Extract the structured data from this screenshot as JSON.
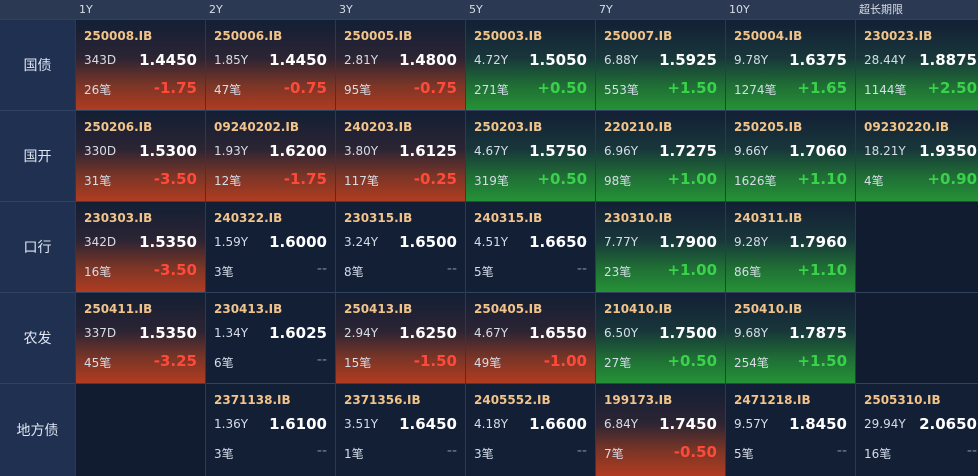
{
  "columns": [
    "1Y",
    "2Y",
    "3Y",
    "5Y",
    "7Y",
    "10Y",
    "超长期限"
  ],
  "rows": [
    {
      "name": "国债",
      "cells": [
        {
          "code": "250008.IB",
          "tenor": "343D",
          "price": "1.4450",
          "count": "26笔",
          "change": "-1.75",
          "trend": "red"
        },
        {
          "code": "250006.IB",
          "tenor": "1.85Y",
          "price": "1.4450",
          "count": "47笔",
          "change": "-0.75",
          "trend": "red"
        },
        {
          "code": "250005.IB",
          "tenor": "2.81Y",
          "price": "1.4800",
          "count": "95笔",
          "change": "-0.75",
          "trend": "red"
        },
        {
          "code": "250003.IB",
          "tenor": "4.72Y",
          "price": "1.5050",
          "count": "271笔",
          "change": "+0.50",
          "trend": "green"
        },
        {
          "code": "250007.IB",
          "tenor": "6.88Y",
          "price": "1.5925",
          "count": "553笔",
          "change": "+1.50",
          "trend": "green"
        },
        {
          "code": "250004.IB",
          "tenor": "9.78Y",
          "price": "1.6375",
          "count": "1274笔",
          "change": "+1.65",
          "trend": "green"
        },
        {
          "code": "230023.IB",
          "tenor": "28.44Y",
          "price": "1.8875",
          "count": "1144笔",
          "change": "+2.50",
          "trend": "green"
        }
      ]
    },
    {
      "name": "国开",
      "cells": [
        {
          "code": "250206.IB",
          "tenor": "330D",
          "price": "1.5300",
          "count": "31笔",
          "change": "-3.50",
          "trend": "red"
        },
        {
          "code": "09240202.IB",
          "tenor": "1.93Y",
          "price": "1.6200",
          "count": "12笔",
          "change": "-1.75",
          "trend": "red"
        },
        {
          "code": "240203.IB",
          "tenor": "3.80Y",
          "price": "1.6125",
          "count": "117笔",
          "change": "-0.25",
          "trend": "red"
        },
        {
          "code": "250203.IB",
          "tenor": "4.67Y",
          "price": "1.5750",
          "count": "319笔",
          "change": "+0.50",
          "trend": "green"
        },
        {
          "code": "220210.IB",
          "tenor": "6.96Y",
          "price": "1.7275",
          "count": "98笔",
          "change": "+1.00",
          "trend": "green"
        },
        {
          "code": "250205.IB",
          "tenor": "9.66Y",
          "price": "1.7060",
          "count": "1626笔",
          "change": "+1.10",
          "trend": "green"
        },
        {
          "code": "09230220.IB",
          "tenor": "18.21Y",
          "price": "1.9350",
          "count": "4笔",
          "change": "+0.90",
          "trend": "green"
        }
      ]
    },
    {
      "name": "口行",
      "cells": [
        {
          "code": "230303.IB",
          "tenor": "342D",
          "price": "1.5350",
          "count": "16笔",
          "change": "-3.50",
          "trend": "red"
        },
        {
          "code": "240322.IB",
          "tenor": "1.59Y",
          "price": "1.6000",
          "count": "3笔",
          "change": "--",
          "trend": "none"
        },
        {
          "code": "230315.IB",
          "tenor": "3.24Y",
          "price": "1.6500",
          "count": "8笔",
          "change": "--",
          "trend": "none"
        },
        {
          "code": "240315.IB",
          "tenor": "4.51Y",
          "price": "1.6650",
          "count": "5笔",
          "change": "--",
          "trend": "none"
        },
        {
          "code": "230310.IB",
          "tenor": "7.77Y",
          "price": "1.7900",
          "count": "23笔",
          "change": "+1.00",
          "trend": "green"
        },
        {
          "code": "240311.IB",
          "tenor": "9.28Y",
          "price": "1.7960",
          "count": "86笔",
          "change": "+1.10",
          "trend": "green"
        },
        null
      ]
    },
    {
      "name": "农发",
      "cells": [
        {
          "code": "250411.IB",
          "tenor": "337D",
          "price": "1.5350",
          "count": "45笔",
          "change": "-3.25",
          "trend": "red"
        },
        {
          "code": "230413.IB",
          "tenor": "1.34Y",
          "price": "1.6025",
          "count": "6笔",
          "change": "--",
          "trend": "none"
        },
        {
          "code": "250413.IB",
          "tenor": "2.94Y",
          "price": "1.6250",
          "count": "15笔",
          "change": "-1.50",
          "trend": "red"
        },
        {
          "code": "250405.IB",
          "tenor": "4.67Y",
          "price": "1.6550",
          "count": "49笔",
          "change": "-1.00",
          "trend": "red"
        },
        {
          "code": "210410.IB",
          "tenor": "6.50Y",
          "price": "1.7500",
          "count": "27笔",
          "change": "+0.50",
          "trend": "green"
        },
        {
          "code": "250410.IB",
          "tenor": "9.68Y",
          "price": "1.7875",
          "count": "254笔",
          "change": "+1.50",
          "trend": "green"
        },
        null
      ]
    },
    {
      "name": "地方债",
      "cells": [
        null,
        {
          "code": "2371138.IB",
          "tenor": "1.36Y",
          "price": "1.6100",
          "count": "3笔",
          "change": "--",
          "trend": "none"
        },
        {
          "code": "2371356.IB",
          "tenor": "3.51Y",
          "price": "1.6450",
          "count": "1笔",
          "change": "--",
          "trend": "none"
        },
        {
          "code": "2405552.IB",
          "tenor": "4.18Y",
          "price": "1.6600",
          "count": "3笔",
          "change": "--",
          "trend": "none"
        },
        {
          "code": "199173.IB",
          "tenor": "6.84Y",
          "price": "1.7450",
          "count": "7笔",
          "change": "-0.50",
          "trend": "red"
        },
        {
          "code": "2471218.IB",
          "tenor": "9.57Y",
          "price": "1.8450",
          "count": "5笔",
          "change": "--",
          "trend": "none"
        },
        {
          "code": "2505310.IB",
          "tenor": "29.94Y",
          "price": "2.0650",
          "count": "16笔",
          "change": "--",
          "trend": "none"
        }
      ]
    }
  ],
  "colors": {
    "red_change": "#ff4a3a",
    "green_change": "#39d24a",
    "code_text": "#f2c48a",
    "background": "#0f1a2e"
  }
}
